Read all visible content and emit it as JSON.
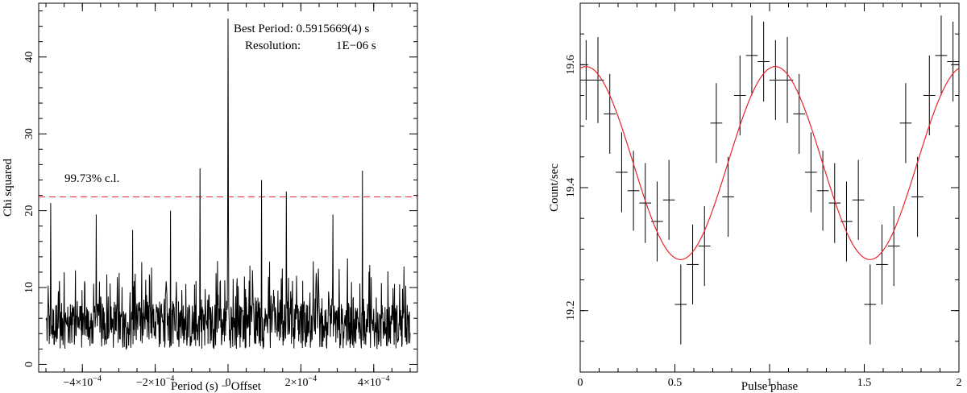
{
  "chart_data": [
    {
      "type": "line",
      "xlabel": "Period (s) − Offset",
      "ylabel": "Chi squared",
      "xlim": [
        -0.00052,
        0.00052
      ],
      "ylim": [
        -1,
        47
      ],
      "x_ticks": [
        {
          "value": -0.0004,
          "mant": "−4×10",
          "exp": "−4"
        },
        {
          "value": -0.0002,
          "mant": "−2×10",
          "exp": "−4"
        },
        {
          "value": 0,
          "text": "0"
        },
        {
          "value": 0.0002,
          "mant": "2×10",
          "exp": "−4"
        },
        {
          "value": 0.0004,
          "mant": "4×10",
          "exp": "−4"
        }
      ],
      "y_ticks": [
        {
          "value": 0,
          "text": "0"
        },
        {
          "value": 10,
          "text": "10"
        },
        {
          "value": 20,
          "text": "20"
        },
        {
          "value": 30,
          "text": "30"
        },
        {
          "value": 40,
          "text": "40"
        }
      ],
      "annotations": {
        "best_period": "Best Period: 0.5915669(4) s",
        "resolution_label": "Resolution:",
        "resolution_value": "1E−06 s"
      },
      "threshold": {
        "y": 21.8,
        "label": "99.73% c.l.",
        "color": "#e8262b"
      },
      "line_color": "#000000",
      "series": [
        {
          "x_start": -0.0005,
          "x_step": 1e-06,
          "noise_baseline": 8,
          "peaks": [
            {
              "x": 0,
              "y": 45
            },
            {
              "x": -7.7e-05,
              "y": 25.5
            },
            {
              "x": 9.2e-05,
              "y": 24
            },
            {
              "x": 0.000369,
              "y": 25.2
            },
            {
              "x": 0.00016,
              "y": 22.5
            },
            {
              "x": -0.000158,
              "y": 20
            },
            {
              "x": -0.000362,
              "y": 19.5
            },
            {
              "x": -0.000487,
              "y": 21
            },
            {
              "x": 0.000288,
              "y": 19.5
            },
            {
              "x": -0.000262,
              "y": 17.5
            }
          ]
        }
      ]
    },
    {
      "type": "scatter",
      "xlabel": "Pulse phase",
      "ylabel": "Count/sec",
      "xlim": [
        0,
        2
      ],
      "ylim": [
        19.1,
        19.7
      ],
      "x_ticks": [
        {
          "value": 0,
          "text": "0"
        },
        {
          "value": 0.5,
          "text": "0.5"
        },
        {
          "value": 1,
          "text": "1"
        },
        {
          "value": 1.5,
          "text": "1.5"
        },
        {
          "value": 2,
          "text": "2"
        }
      ],
      "y_ticks": [
        {
          "value": 19.2,
          "text": "19.2"
        },
        {
          "value": 19.4,
          "text": "19.4"
        },
        {
          "value": 19.6,
          "text": "19.6"
        }
      ],
      "point_color": "#000000",
      "phase_bin_half_width": 0.03125,
      "points": [
        {
          "x": 0.03125,
          "y": 19.575,
          "err": 0.065
        },
        {
          "x": 0.09375,
          "y": 19.575,
          "err": 0.07
        },
        {
          "x": 0.15625,
          "y": 19.52,
          "err": 0.065
        },
        {
          "x": 0.21875,
          "y": 19.425,
          "err": 0.065
        },
        {
          "x": 0.28125,
          "y": 19.395,
          "err": 0.065
        },
        {
          "x": 0.34375,
          "y": 19.375,
          "err": 0.065
        },
        {
          "x": 0.40625,
          "y": 19.345,
          "err": 0.065
        },
        {
          "x": 0.46875,
          "y": 19.38,
          "err": 0.065
        },
        {
          "x": 0.53125,
          "y": 19.21,
          "err": 0.065
        },
        {
          "x": 0.59375,
          "y": 19.275,
          "err": 0.065
        },
        {
          "x": 0.65625,
          "y": 19.305,
          "err": 0.065
        },
        {
          "x": 0.71875,
          "y": 19.505,
          "err": 0.065
        },
        {
          "x": 0.78125,
          "y": 19.385,
          "err": 0.065
        },
        {
          "x": 0.84375,
          "y": 19.55,
          "err": 0.065
        },
        {
          "x": 0.90625,
          "y": 19.615,
          "err": 0.065
        },
        {
          "x": 0.96875,
          "y": 19.605,
          "err": 0.065
        }
      ],
      "fit": {
        "color": "#e8262b",
        "mean": 19.44,
        "amplitude": 0.157,
        "peak_phase": 0.03
      }
    }
  ]
}
